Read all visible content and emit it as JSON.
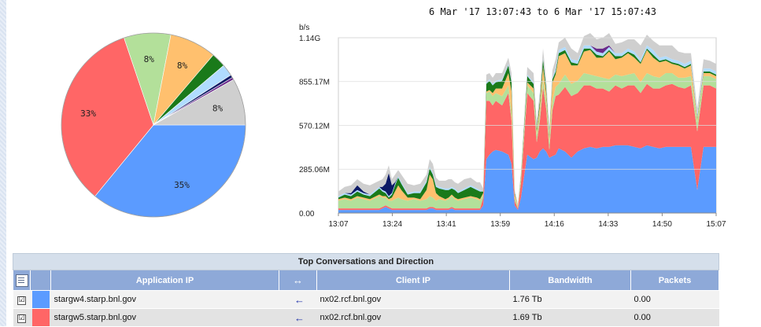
{
  "report": {
    "time_range": "6 Mar '17 13:07:43 to  6 Mar '17 15:07:43"
  },
  "colors": {
    "blue": "#5b9bff",
    "red": "#ff6666",
    "light_green": "#b3e09a",
    "orange": "#ffc06e",
    "dark_green": "#1a7a1a",
    "light_blue": "#b0dcff",
    "navy": "#0d1a66",
    "purple": "#6a2a8a",
    "grey": "#cfcfcf"
  },
  "chart_data": [
    {
      "type": "pie",
      "slices": [
        {
          "color_key": "blue",
          "value": 35,
          "label": "35%"
        },
        {
          "color_key": "red",
          "value": 33,
          "label": "33%"
        },
        {
          "color_key": "light_green",
          "value": 8,
          "label": "8%"
        },
        {
          "color_key": "orange",
          "value": 8,
          "label": "8%"
        },
        {
          "color_key": "dark_green",
          "value": 2.5,
          "label": ""
        },
        {
          "color_key": "light_blue",
          "value": 2,
          "label": ""
        },
        {
          "color_key": "navy",
          "value": 0.5,
          "label": ""
        },
        {
          "color_key": "purple",
          "value": 0.4,
          "label": ""
        },
        {
          "color_key": "grey",
          "value": 8,
          "label": "8%"
        }
      ]
    },
    {
      "type": "area",
      "stacked": true,
      "title": "6 Mar '17 13:07:43 to  6 Mar '17 15:07:43",
      "ylabel": "b/s",
      "ylim": [
        0,
        1.14
      ],
      "yticks": [
        "0.00",
        "285.06M",
        "570.12M",
        "855.17M",
        "1.14G"
      ],
      "ytick_values": [
        0,
        0.28506,
        0.57012,
        0.85517,
        1.14
      ],
      "xticks": [
        "13:07",
        "13:24",
        "13:41",
        "13:59",
        "14:16",
        "14:33",
        "14:50",
        "15:07"
      ],
      "x": [
        0,
        2,
        4,
        6,
        8,
        10,
        13,
        14,
        15,
        16,
        17,
        18,
        19,
        20,
        22,
        24,
        26,
        28,
        29,
        30,
        31,
        32,
        34,
        35,
        36,
        37,
        38,
        40,
        42,
        44,
        45,
        46,
        47,
        48,
        49,
        50,
        52,
        54,
        55,
        56,
        57,
        58,
        60,
        62,
        63,
        64,
        65,
        66,
        67,
        68,
        69,
        70,
        72,
        74,
        76,
        78,
        80,
        82,
        84,
        86,
        88,
        90,
        92,
        94,
        96,
        98,
        100,
        102,
        104,
        106,
        108,
        110,
        112,
        114,
        116,
        118,
        120
      ],
      "series": [
        {
          "color_key": "blue",
          "values": [
            0.02,
            0.02,
            0.02,
            0.02,
            0.02,
            0.02,
            0.02,
            0.03,
            0.04,
            0.03,
            0.02,
            0.02,
            0.02,
            0.02,
            0.02,
            0.02,
            0.02,
            0.02,
            0.03,
            0.03,
            0.02,
            0.02,
            0.02,
            0.02,
            0.03,
            0.02,
            0.02,
            0.02,
            0.02,
            0.02,
            0.02,
            0.05,
            0.35,
            0.38,
            0.4,
            0.41,
            0.4,
            0.38,
            0.32,
            0.05,
            0.02,
            0.1,
            0.38,
            0.35,
            0.36,
            0.4,
            0.42,
            0.4,
            0.36,
            0.37,
            0.38,
            0.42,
            0.4,
            0.36,
            0.4,
            0.42,
            0.43,
            0.42,
            0.43,
            0.43,
            0.44,
            0.44,
            0.44,
            0.43,
            0.42,
            0.44,
            0.43,
            0.42,
            0.43,
            0.43,
            0.43,
            0.43,
            0.43,
            0.15,
            0.43,
            0.43,
            0.43
          ]
        },
        {
          "color_key": "red",
          "values": [
            0.01,
            0.01,
            0.01,
            0.01,
            0.01,
            0.01,
            0.01,
            0.01,
            0.01,
            0.01,
            0.01,
            0.01,
            0.01,
            0.01,
            0.01,
            0.01,
            0.01,
            0.01,
            0.01,
            0.01,
            0.01,
            0.01,
            0.01,
            0.01,
            0.01,
            0.01,
            0.01,
            0.01,
            0.01,
            0.01,
            0.01,
            0.05,
            0.38,
            0.35,
            0.3,
            0.32,
            0.3,
            0.4,
            0.28,
            0.03,
            0.01,
            0.1,
            0.4,
            0.38,
            0.1,
            0.2,
            0.4,
            0.28,
            0.05,
            0.3,
            0.38,
            0.35,
            0.42,
            0.4,
            0.38,
            0.41,
            0.4,
            0.39,
            0.38,
            0.36,
            0.39,
            0.37,
            0.39,
            0.4,
            0.36,
            0.4,
            0.38,
            0.39,
            0.4,
            0.41,
            0.39,
            0.38,
            0.4,
            0.38,
            0.4,
            0.4,
            0.38
          ]
        },
        {
          "color_key": "light_green",
          "values": [
            0.05,
            0.06,
            0.05,
            0.07,
            0.06,
            0.05,
            0.08,
            0.06,
            0.05,
            0.04,
            0.05,
            0.06,
            0.07,
            0.06,
            0.05,
            0.06,
            0.05,
            0.06,
            0.07,
            0.06,
            0.05,
            0.06,
            0.05,
            0.06,
            0.07,
            0.06,
            0.05,
            0.06,
            0.07,
            0.06,
            0.05,
            0.02,
            0.05,
            0.06,
            0.06,
            0.05,
            0.06,
            0.05,
            0.05,
            0.02,
            0.01,
            0.03,
            0.05,
            0.05,
            0.05,
            0.05,
            0.05,
            0.05,
            0.05,
            0.06,
            0.06,
            0.07,
            0.08,
            0.08,
            0.08,
            0.08,
            0.07,
            0.08,
            0.07,
            0.08,
            0.07,
            0.08,
            0.07,
            0.08,
            0.07,
            0.07,
            0.08,
            0.07,
            0.08,
            0.07,
            0.06,
            0.07,
            0.06,
            0.06,
            0.06,
            0.06,
            0.06
          ]
        },
        {
          "color_key": "orange",
          "values": [
            0.01,
            0.01,
            0.01,
            0.01,
            0.01,
            0.01,
            0.01,
            0.01,
            0.01,
            0.01,
            0.02,
            0.05,
            0.08,
            0.06,
            0.02,
            0.01,
            0.01,
            0.06,
            0.14,
            0.12,
            0.05,
            0.02,
            0.01,
            0.01,
            0.01,
            0.01,
            0.01,
            0.01,
            0.01,
            0.01,
            0.01,
            0.01,
            0.01,
            0.01,
            0.02,
            0.03,
            0.05,
            0.08,
            0.14,
            0.02,
            0.01,
            0.01,
            0.02,
            0.03,
            0.02,
            0.05,
            0.08,
            0.05,
            0.03,
            0.12,
            0.08,
            0.18,
            0.14,
            0.12,
            0.1,
            0.14,
            0.16,
            0.12,
            0.13,
            0.18,
            0.1,
            0.12,
            0.14,
            0.1,
            0.12,
            0.15,
            0.12,
            0.1,
            0.08,
            0.06,
            0.08,
            0.06,
            0.07,
            0.02,
            0.02,
            0.02,
            0.02
          ]
        },
        {
          "color_key": "dark_green",
          "values": [
            0.01,
            0.02,
            0.02,
            0.03,
            0.02,
            0.02,
            0.04,
            0.03,
            0.02,
            0.01,
            0.02,
            0.04,
            0.05,
            0.04,
            0.02,
            0.03,
            0.04,
            0.05,
            0.04,
            0.03,
            0.04,
            0.05,
            0.06,
            0.05,
            0.04,
            0.05,
            0.04,
            0.05,
            0.06,
            0.05,
            0.05,
            0.01,
            0.05,
            0.06,
            0.05,
            0.04,
            0.05,
            0.05,
            0.06,
            0.01,
            0.0,
            0.01,
            0.04,
            0.03,
            0.02,
            0.03,
            0.05,
            0.03,
            0.02,
            0.02,
            0.02,
            0.02,
            0.02,
            0.02,
            0.01,
            0.02,
            0.01,
            0.02,
            0.01,
            0.01,
            0.02,
            0.01,
            0.01,
            0.02,
            0.01,
            0.01,
            0.02,
            0.01,
            0.01,
            0.01,
            0.01,
            0.01,
            0.01,
            0.01,
            0.01,
            0.01,
            0.01
          ]
        },
        {
          "color_key": "light_blue",
          "values": [
            0.01,
            0.01,
            0.01,
            0.01,
            0.01,
            0.01,
            0.01,
            0.01,
            0.01,
            0.01,
            0.01,
            0.01,
            0.01,
            0.01,
            0.01,
            0.01,
            0.01,
            0.01,
            0.01,
            0.01,
            0.01,
            0.01,
            0.01,
            0.01,
            0.01,
            0.01,
            0.01,
            0.01,
            0.01,
            0.01,
            0.01,
            0.0,
            0.01,
            0.01,
            0.01,
            0.01,
            0.01,
            0.01,
            0.01,
            0.0,
            0.0,
            0.0,
            0.01,
            0.01,
            0.01,
            0.01,
            0.01,
            0.01,
            0.01,
            0.01,
            0.02,
            0.02,
            0.02,
            0.02,
            0.02,
            0.02,
            0.02,
            0.02,
            0.02,
            0.02,
            0.02,
            0.02,
            0.02,
            0.02,
            0.02,
            0.02,
            0.03,
            0.02,
            0.02,
            0.02,
            0.02,
            0.02,
            0.02,
            0.02,
            0.02,
            0.02,
            0.02
          ]
        },
        {
          "color_key": "navy",
          "values": [
            0.0,
            0.0,
            0.01,
            0.03,
            0.01,
            0.0,
            0.0,
            0.02,
            0.05,
            0.15,
            0.05,
            0.01,
            0.0,
            0.0,
            0.0,
            0.0,
            0.0,
            0.0,
            0.0,
            0.0,
            0.0,
            0.0,
            0.0,
            0.0,
            0.0,
            0.0,
            0.0,
            0.0,
            0.0,
            0.0,
            0.0,
            0.0,
            0.0,
            0.0,
            0.0,
            0.0,
            0.0,
            0.0,
            0.0,
            0.0,
            0.0,
            0.0,
            0.0,
            0.0,
            0.0,
            0.0,
            0.0,
            0.0,
            0.0,
            0.0,
            0.0,
            0.0,
            0.0,
            0.0,
            0.0,
            0.0,
            0.0,
            0.0,
            0.0,
            0.0,
            0.0,
            0.0,
            0.0,
            0.0,
            0.0,
            0.0,
            0.0,
            0.0,
            0.0,
            0.0,
            0.0,
            0.0,
            0.0,
            0.0,
            0.0,
            0.0,
            0.0
          ]
        },
        {
          "color_key": "purple",
          "values": [
            0.0,
            0.0,
            0.0,
            0.0,
            0.0,
            0.0,
            0.0,
            0.0,
            0.0,
            0.0,
            0.0,
            0.0,
            0.0,
            0.0,
            0.0,
            0.0,
            0.0,
            0.0,
            0.0,
            0.0,
            0.0,
            0.0,
            0.0,
            0.0,
            0.0,
            0.0,
            0.0,
            0.0,
            0.0,
            0.0,
            0.0,
            0.0,
            0.0,
            0.0,
            0.0,
            0.0,
            0.0,
            0.0,
            0.0,
            0.0,
            0.0,
            0.0,
            0.0,
            0.0,
            0.0,
            0.0,
            0.0,
            0.0,
            0.0,
            0.0,
            0.0,
            0.0,
            0.0,
            0.0,
            0.0,
            0.0,
            0.0,
            0.02,
            0.03,
            0.01,
            0.0,
            0.0,
            0.0,
            0.0,
            0.0,
            0.0,
            0.0,
            0.0,
            0.0,
            0.0,
            0.0,
            0.0,
            0.0,
            0.0,
            0.0,
            0.0,
            0.0
          ]
        },
        {
          "color_key": "grey",
          "values": [
            0.03,
            0.04,
            0.05,
            0.04,
            0.05,
            0.06,
            0.04,
            0.05,
            0.06,
            0.05,
            0.04,
            0.05,
            0.04,
            0.05,
            0.06,
            0.04,
            0.05,
            0.04,
            0.05,
            0.06,
            0.05,
            0.04,
            0.05,
            0.06,
            0.05,
            0.04,
            0.05,
            0.06,
            0.05,
            0.04,
            0.05,
            0.02,
            0.05,
            0.04,
            0.04,
            0.05,
            0.04,
            0.04,
            0.05,
            0.02,
            0.01,
            0.02,
            0.05,
            0.06,
            0.04,
            0.05,
            0.06,
            0.05,
            0.04,
            0.05,
            0.06,
            0.05,
            0.06,
            0.07,
            0.05,
            0.06,
            0.08,
            0.06,
            0.07,
            0.08,
            0.06,
            0.07,
            0.06,
            0.08,
            0.09,
            0.07,
            0.06,
            0.08,
            0.07,
            0.09,
            0.06,
            0.07,
            0.05,
            0.04,
            0.06,
            0.05,
            0.05
          ]
        }
      ]
    }
  ],
  "table": {
    "title": "Top Conversations and Direction",
    "headers": {
      "application_ip": "Application IP",
      "direction": "↔",
      "client_ip": "Client IP",
      "bandwidth": "Bandwidth",
      "packets": "Packets"
    },
    "rows": [
      {
        "checked": "☑",
        "color_key": "blue",
        "application_ip": "stargw4.starp.bnl.gov",
        "direction": "←",
        "client_ip": "nx02.rcf.bnl.gov",
        "bandwidth": "1.76 Tb",
        "packets": "0.00"
      },
      {
        "checked": "☑",
        "color_key": "red",
        "application_ip": "stargw5.starp.bnl.gov",
        "direction": "←",
        "client_ip": "nx02.rcf.bnl.gov",
        "bandwidth": "1.69 Tb",
        "packets": "0.00"
      }
    ]
  }
}
